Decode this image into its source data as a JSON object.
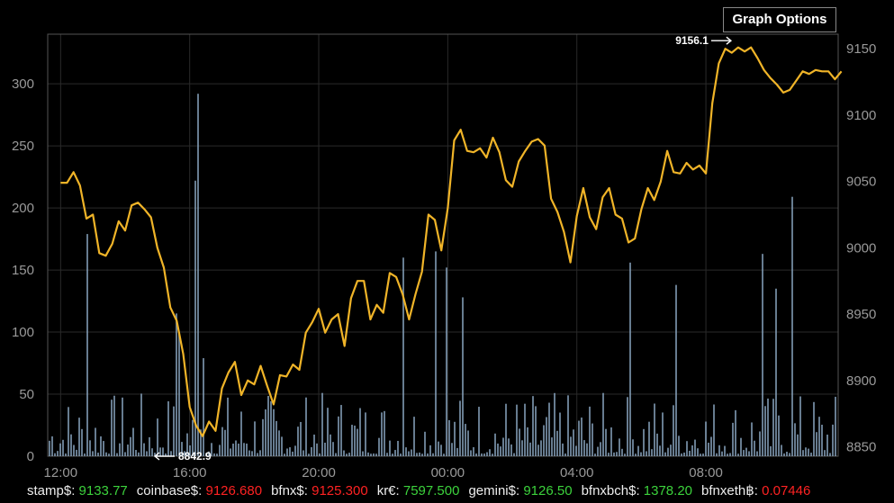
{
  "graph_options_label": "Graph Options",
  "tickers": [
    {
      "label": "stamp$:",
      "value": "9133.77",
      "direction": "up"
    },
    {
      "label": "coinbase$:",
      "value": "9126.680",
      "direction": "down"
    },
    {
      "label": "bfnx$:",
      "value": "9125.300",
      "direction": "down"
    },
    {
      "label": "kr€:",
      "value": "7597.500",
      "direction": "up"
    },
    {
      "label": "gemini$:",
      "value": "9126.50",
      "direction": "up"
    },
    {
      "label": "bfnxbch$:",
      "value": "1378.20",
      "direction": "up"
    },
    {
      "label": "bfnxeth฿:",
      "value": "0.07446",
      "direction": "down"
    }
  ],
  "colors": {
    "up": "#3cd23c",
    "down": "#ff2222",
    "price_line": "#f0b428",
    "volume_bar": "#8aa6c0",
    "grid": "#2a2a2a",
    "axis_text": "#999999"
  },
  "chart_data": {
    "type": "line",
    "title": "",
    "x_tick_labels": [
      "12:00",
      "16:00",
      "20:00",
      "00:00",
      "04:00",
      "08:00"
    ],
    "left_axis": {
      "label": "",
      "ticks": [
        0,
        50,
        100,
        150,
        200,
        250,
        300
      ],
      "range": [
        0,
        340
      ]
    },
    "right_axis": {
      "label": "",
      "ticks": [
        8850,
        8900,
        8950,
        9000,
        9050,
        9100,
        9150
      ],
      "range": [
        8842.9,
        9161
      ]
    },
    "annotations": [
      {
        "text": "9156.1",
        "value": 9156.1,
        "kind": "max"
      },
      {
        "text": "8842.9",
        "value": 8842.9,
        "kind": "min"
      }
    ],
    "series": [
      {
        "name": "price",
        "axis": "right",
        "hours_from_1200": [
          0.0,
          0.2,
          0.4,
          0.6,
          0.8,
          1.0,
          1.2,
          1.4,
          1.6,
          1.8,
          2.0,
          2.2,
          2.4,
          2.6,
          2.8,
          3.0,
          3.2,
          3.4,
          3.6,
          3.8,
          4.0,
          4.2,
          4.4,
          4.6,
          4.8,
          5.0,
          5.2,
          5.4,
          5.6,
          5.8,
          6.0,
          6.2,
          6.4,
          6.6,
          6.8,
          7.0,
          7.2,
          7.4,
          7.6,
          7.8,
          8.0,
          8.2,
          8.4,
          8.6,
          8.8,
          9.0,
          9.2,
          9.4,
          9.6,
          9.8,
          10.0,
          10.2,
          10.4,
          10.6,
          10.8,
          11.0,
          11.2,
          11.4,
          11.6,
          11.8,
          12.0,
          12.2,
          12.4,
          12.6,
          12.8,
          13.0,
          13.2,
          13.4,
          13.6,
          13.8,
          14.0,
          14.2,
          14.4,
          14.6,
          14.8,
          15.0,
          15.2,
          15.4,
          15.6,
          15.8,
          16.0,
          16.2,
          16.4,
          16.6,
          16.8,
          17.0,
          17.2,
          17.4,
          17.6,
          17.8,
          18.0,
          18.2,
          18.4,
          18.6,
          18.8,
          19.0,
          19.2,
          19.4,
          19.6,
          19.8,
          20.0,
          20.2,
          20.4,
          20.6,
          20.8,
          21.0,
          21.2,
          21.4,
          21.6,
          21.8,
          22.0,
          22.2,
          22.4,
          22.6,
          22.8,
          23.0,
          23.2,
          23.4,
          23.6,
          23.8,
          24.0,
          24.2
        ],
        "values": [
          9049,
          9049,
          9057,
          9047,
          9022,
          9025,
          8996,
          8994,
          9003,
          9020,
          9013,
          9032,
          9034,
          9029,
          9023,
          9000,
          8985,
          8955,
          8945,
          8920,
          8880,
          8866,
          8858,
          8869,
          8862,
          8894,
          8906,
          8914,
          8889,
          8900,
          8897,
          8911,
          8896,
          8882,
          8904,
          8903,
          8912,
          8908,
          8936,
          8944,
          8954,
          8936,
          8946,
          8950,
          8926,
          8962,
          8975,
          8975,
          8946,
          8957,
          8951,
          8981,
          8978,
          8965,
          8946,
          8965,
          8982,
          9025,
          9021,
          8998,
          9030,
          9081,
          9089,
          9073,
          9072,
          9075,
          9068,
          9083,
          9072,
          9051,
          9046,
          9065,
          9073,
          9080,
          9082,
          9077,
          9037,
          9027,
          9012,
          8989,
          9024,
          9045,
          9023,
          9014,
          9038,
          9045,
          9025,
          9022,
          9004,
          9007,
          9029,
          9045,
          9036,
          9050,
          9073,
          9057,
          9056,
          9064,
          9059,
          9062,
          9056,
          9109,
          9139,
          9150,
          9147,
          9151,
          9148,
          9151,
          9143,
          9134,
          9128,
          9123,
          9117,
          9119,
          9126,
          9133,
          9131,
          9134,
          9133,
          9133,
          9127,
          9133
        ]
      },
      {
        "name": "volume",
        "axis": "left",
        "type": "bar",
        "spikes": [
          {
            "hour": 0.8,
            "value": 179
          },
          {
            "hour": 3.5,
            "value": 115
          },
          {
            "hour": 3.6,
            "value": 100
          },
          {
            "hour": 4.1,
            "value": 222
          },
          {
            "hour": 4.2,
            "value": 292
          },
          {
            "hour": 4.35,
            "value": 79
          },
          {
            "hour": 10.6,
            "value": 160
          },
          {
            "hour": 11.6,
            "value": 165
          },
          {
            "hour": 11.9,
            "value": 152
          },
          {
            "hour": 12.4,
            "value": 128
          },
          {
            "hour": 17.6,
            "value": 156
          },
          {
            "hour": 19.0,
            "value": 138
          },
          {
            "hour": 21.7,
            "value": 163
          },
          {
            "hour": 22.1,
            "value": 135
          },
          {
            "hour": 22.6,
            "value": 209
          }
        ],
        "baseline_range": [
          2,
          50
        ]
      }
    ],
    "grid": true
  }
}
